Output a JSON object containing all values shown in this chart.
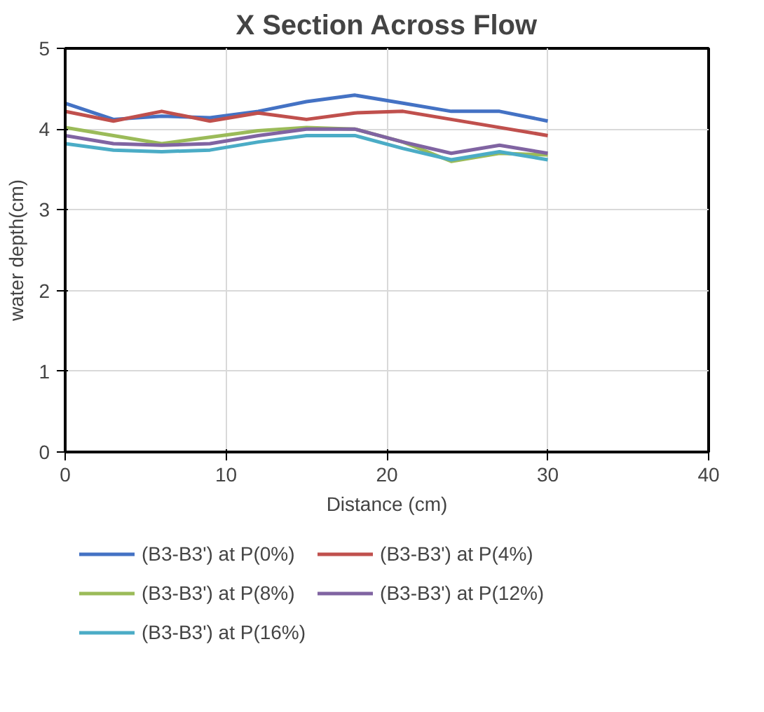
{
  "chart_data": {
    "type": "line",
    "title": "X Section Across Flow",
    "xlabel": "Distance (cm)",
    "ylabel": "water depth(cm)",
    "x": [
      0,
      3,
      6,
      9,
      12,
      15,
      18,
      21,
      24,
      27,
      30
    ],
    "xlim": [
      0,
      40
    ],
    "xticks": [
      0,
      10,
      20,
      30,
      40
    ],
    "ylim": [
      0,
      5
    ],
    "yticks": [
      0,
      1,
      2,
      3,
      4,
      5
    ],
    "grid": true,
    "legend": "bottom",
    "marker": "none",
    "line_style": "solid",
    "series": [
      {
        "name": "(B3-B3') at P(0%)",
        "color": "#4472c4",
        "values": [
          4.32,
          4.12,
          4.16,
          4.14,
          4.22,
          4.34,
          4.42,
          4.32,
          4.22,
          4.22,
          4.1
        ]
      },
      {
        "name": "(B3-B3') at P(4%)",
        "color": "#c0504d",
        "values": [
          4.22,
          4.1,
          4.22,
          4.1,
          4.2,
          4.12,
          4.2,
          4.22,
          4.12,
          4.02,
          3.92
        ]
      },
      {
        "name": "(B3-B3') at P(8%)",
        "color": "#9bbb59",
        "values": [
          4.02,
          3.92,
          3.82,
          3.9,
          3.98,
          4.02,
          4.0,
          3.84,
          3.6,
          3.7,
          3.68
        ]
      },
      {
        "name": "(B3-B3') at P(12%)",
        "color": "#8064a2",
        "values": [
          3.92,
          3.82,
          3.8,
          3.82,
          3.92,
          4.0,
          4.0,
          3.84,
          3.7,
          3.8,
          3.7
        ]
      },
      {
        "name": "(B3-B3') at P(16%)",
        "color": "#4bacc6",
        "values": [
          3.82,
          3.74,
          3.72,
          3.74,
          3.84,
          3.92,
          3.92,
          3.76,
          3.62,
          3.72,
          3.62
        ]
      }
    ]
  }
}
